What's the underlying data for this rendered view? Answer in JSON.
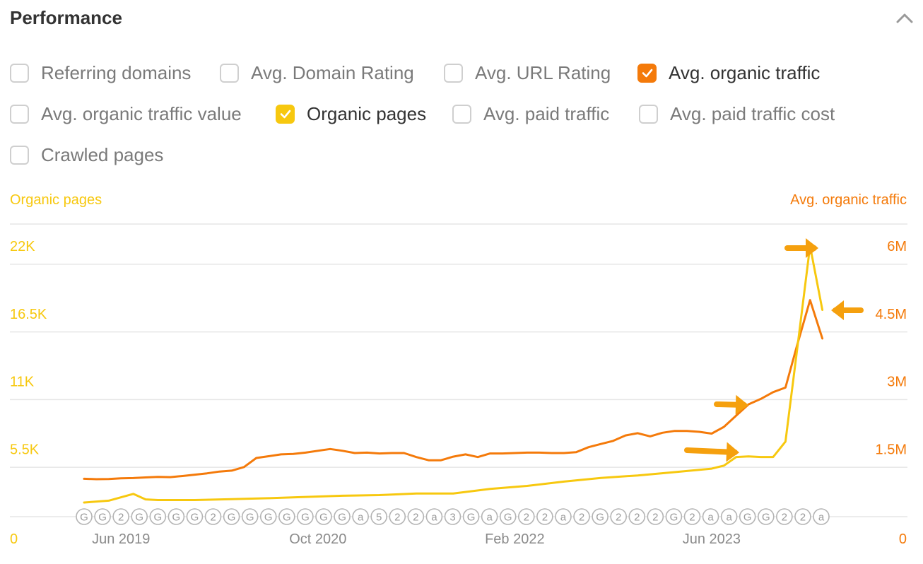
{
  "header": {
    "title": "Performance"
  },
  "colors": {
    "organic_pages": "#f7c80f",
    "avg_organic_traffic": "#f47a0a",
    "annotation_arrow": "#f5a00e",
    "grid": "#e6e6e6",
    "marker": "#b4b4b4",
    "unchecked_border": "#cfcfcf"
  },
  "options": [
    {
      "label": "Referring domains",
      "checked": false,
      "color": ""
    },
    {
      "label": "Avg. Domain Rating",
      "checked": false,
      "color": ""
    },
    {
      "label": "Avg. URL Rating",
      "checked": false,
      "color": ""
    },
    {
      "label": "Avg. organic traffic",
      "checked": true,
      "color": "#f47a0a"
    },
    {
      "label": "Avg. organic traffic value",
      "checked": false,
      "color": ""
    },
    {
      "label": "Organic pages",
      "checked": true,
      "color": "#f7c80f"
    },
    {
      "label": "Avg. paid traffic",
      "checked": false,
      "color": ""
    },
    {
      "label": "Avg. paid traffic cost",
      "checked": false,
      "color": ""
    },
    {
      "label": "Crawled pages",
      "checked": false,
      "color": ""
    }
  ],
  "chart_data": {
    "type": "line",
    "left_axis_title": "Organic pages",
    "right_axis_title": "Avg. organic traffic",
    "left_ticks": [
      "0",
      "5.5K",
      "11K",
      "16.5K",
      "22K"
    ],
    "right_ticks": [
      "0",
      "1.5M",
      "3M",
      "4.5M",
      "6M"
    ],
    "left_ylim": [
      0,
      22000
    ],
    "right_ylim": [
      0,
      6000000
    ],
    "x_ticks": [
      {
        "label": "Jun 2019",
        "date": "2019-06"
      },
      {
        "label": "Oct 2020",
        "date": "2020-10"
      },
      {
        "label": "Feb 2022",
        "date": "2022-02"
      },
      {
        "label": "Jun 2023",
        "date": "2023-06"
      }
    ],
    "x_range": [
      "2019-03",
      "2024-04"
    ],
    "grid": true,
    "series": [
      {
        "name": "Avg. organic traffic",
        "axis": "right",
        "color": "#f47a0a",
        "points": [
          [
            "2019-03",
            840000
          ],
          [
            "2019-04",
            830000
          ],
          [
            "2019-05",
            835000
          ],
          [
            "2019-06",
            850000
          ],
          [
            "2019-07",
            855000
          ],
          [
            "2019-08",
            870000
          ],
          [
            "2019-09",
            880000
          ],
          [
            "2019-10",
            875000
          ],
          [
            "2019-11",
            900000
          ],
          [
            "2019-12",
            930000
          ],
          [
            "2020-01",
            960000
          ],
          [
            "2020-02",
            1000000
          ],
          [
            "2020-03",
            1020000
          ],
          [
            "2020-04",
            1100000
          ],
          [
            "2020-05",
            1300000
          ],
          [
            "2020-06",
            1340000
          ],
          [
            "2020-07",
            1380000
          ],
          [
            "2020-08",
            1390000
          ],
          [
            "2020-09",
            1420000
          ],
          [
            "2020-10",
            1460000
          ],
          [
            "2020-11",
            1500000
          ],
          [
            "2020-12",
            1460000
          ],
          [
            "2021-01",
            1410000
          ],
          [
            "2021-02",
            1420000
          ],
          [
            "2021-03",
            1400000
          ],
          [
            "2021-04",
            1410000
          ],
          [
            "2021-05",
            1410000
          ],
          [
            "2021-06",
            1320000
          ],
          [
            "2021-07",
            1250000
          ],
          [
            "2021-08",
            1250000
          ],
          [
            "2021-09",
            1330000
          ],
          [
            "2021-10",
            1380000
          ],
          [
            "2021-11",
            1320000
          ],
          [
            "2021-12",
            1400000
          ],
          [
            "2022-01",
            1400000
          ],
          [
            "2022-02",
            1410000
          ],
          [
            "2022-03",
            1420000
          ],
          [
            "2022-04",
            1420000
          ],
          [
            "2022-05",
            1410000
          ],
          [
            "2022-06",
            1410000
          ],
          [
            "2022-07",
            1430000
          ],
          [
            "2022-08",
            1540000
          ],
          [
            "2022-09",
            1610000
          ],
          [
            "2022-10",
            1680000
          ],
          [
            "2022-11",
            1800000
          ],
          [
            "2022-12",
            1850000
          ],
          [
            "2023-01",
            1780000
          ],
          [
            "2023-02",
            1860000
          ],
          [
            "2023-03",
            1900000
          ],
          [
            "2023-04",
            1900000
          ],
          [
            "2023-05",
            1880000
          ],
          [
            "2023-06",
            1840000
          ],
          [
            "2023-07",
            1990000
          ],
          [
            "2023-08",
            2240000
          ],
          [
            "2023-09",
            2490000
          ],
          [
            "2023-10",
            2610000
          ],
          [
            "2023-11",
            2760000
          ],
          [
            "2023-12",
            2860000
          ],
          [
            "2024-01",
            3850000
          ],
          [
            "2024-02",
            4800000
          ],
          [
            "2024-03",
            3950000
          ]
        ]
      },
      {
        "name": "Organic pages",
        "axis": "left",
        "color": "#f7c80f",
        "points": [
          [
            "2019-03",
            1150
          ],
          [
            "2019-05",
            1300
          ],
          [
            "2019-07",
            1850
          ],
          [
            "2019-08",
            1400
          ],
          [
            "2019-09",
            1350
          ],
          [
            "2019-12",
            1350
          ],
          [
            "2020-03",
            1420
          ],
          [
            "2020-06",
            1500
          ],
          [
            "2020-09",
            1600
          ],
          [
            "2020-12",
            1700
          ],
          [
            "2021-03",
            1750
          ],
          [
            "2021-06",
            1880
          ],
          [
            "2021-09",
            1880
          ],
          [
            "2021-12",
            2250
          ],
          [
            "2022-03",
            2500
          ],
          [
            "2022-06",
            2850
          ],
          [
            "2022-09",
            3150
          ],
          [
            "2022-12",
            3350
          ],
          [
            "2023-03",
            3620
          ],
          [
            "2023-06",
            3900
          ],
          [
            "2023-07",
            4150
          ],
          [
            "2023-08",
            4850
          ],
          [
            "2023-09",
            4900
          ],
          [
            "2023-10",
            4850
          ],
          [
            "2023-11",
            4850
          ],
          [
            "2023-12",
            6100
          ],
          [
            "2024-01",
            14000
          ],
          [
            "2024-02",
            22000
          ],
          [
            "2024-03",
            16800
          ]
        ]
      }
    ],
    "annotation_markers": [
      "G",
      "G",
      "2",
      "G",
      "G",
      "G",
      "G",
      "2",
      "G",
      "G",
      "G",
      "G",
      "G",
      "G",
      "G",
      "a",
      "5",
      "2",
      "2",
      "a",
      "3",
      "G",
      "a",
      "G",
      "2",
      "2",
      "a",
      "2",
      "G",
      "2",
      "2",
      "2",
      "G",
      "2",
      "a",
      "a",
      "G",
      "G",
      "2",
      "2",
      "a"
    ]
  }
}
